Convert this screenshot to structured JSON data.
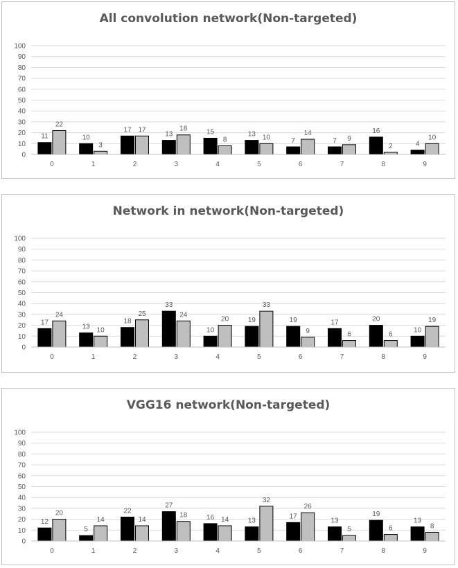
{
  "chart_data": [
    {
      "type": "bar",
      "title": "All convolution network(Non-targeted)",
      "categories": [
        "0",
        "1",
        "2",
        "3",
        "4",
        "5",
        "6",
        "7",
        "8",
        "9"
      ],
      "series": [
        {
          "values": [
            11,
            10,
            17,
            13,
            15,
            13,
            7,
            7,
            16,
            4
          ],
          "color": "#000000"
        },
        {
          "values": [
            22,
            3,
            17,
            18,
            8,
            10,
            14,
            9,
            2,
            10
          ],
          "color": "#bfbfbf"
        }
      ],
      "yticks": [
        "0",
        "10",
        "20",
        "30",
        "40",
        "50",
        "60",
        "70",
        "80",
        "90",
        "100"
      ],
      "ylim": [
        0,
        100
      ],
      "grid": true
    },
    {
      "type": "bar",
      "title": "Network in network(Non-targeted)",
      "categories": [
        "0",
        "1",
        "2",
        "3",
        "4",
        "5",
        "6",
        "7",
        "8",
        "9"
      ],
      "series": [
        {
          "values": [
            17,
            13,
            18,
            33,
            10,
            19,
            19,
            17,
            20,
            10
          ],
          "color": "#000000"
        },
        {
          "values": [
            24,
            10,
            25,
            24,
            20,
            33,
            9,
            6,
            6,
            19
          ],
          "color": "#bfbfbf"
        }
      ],
      "yticks": [
        "0",
        "10",
        "20",
        "30",
        "40",
        "50",
        "60",
        "70",
        "80",
        "90",
        "100"
      ],
      "ylim": [
        0,
        100
      ],
      "grid": true
    },
    {
      "type": "bar",
      "title": "VGG16 network(Non-targeted)",
      "categories": [
        "0",
        "1",
        "2",
        "3",
        "4",
        "5",
        "6",
        "7",
        "8",
        "9"
      ],
      "series": [
        {
          "values": [
            12,
            5,
            22,
            27,
            16,
            13,
            17,
            13,
            19,
            13
          ],
          "color": "#000000"
        },
        {
          "values": [
            20,
            14,
            14,
            18,
            14,
            32,
            26,
            5,
            6,
            8
          ],
          "color": "#bfbfbf"
        }
      ],
      "yticks": [
        "0",
        "10",
        "20",
        "30",
        "40",
        "50",
        "60",
        "70",
        "80",
        "90",
        "100"
      ],
      "ylim": [
        0,
        100
      ],
      "grid": true
    }
  ]
}
